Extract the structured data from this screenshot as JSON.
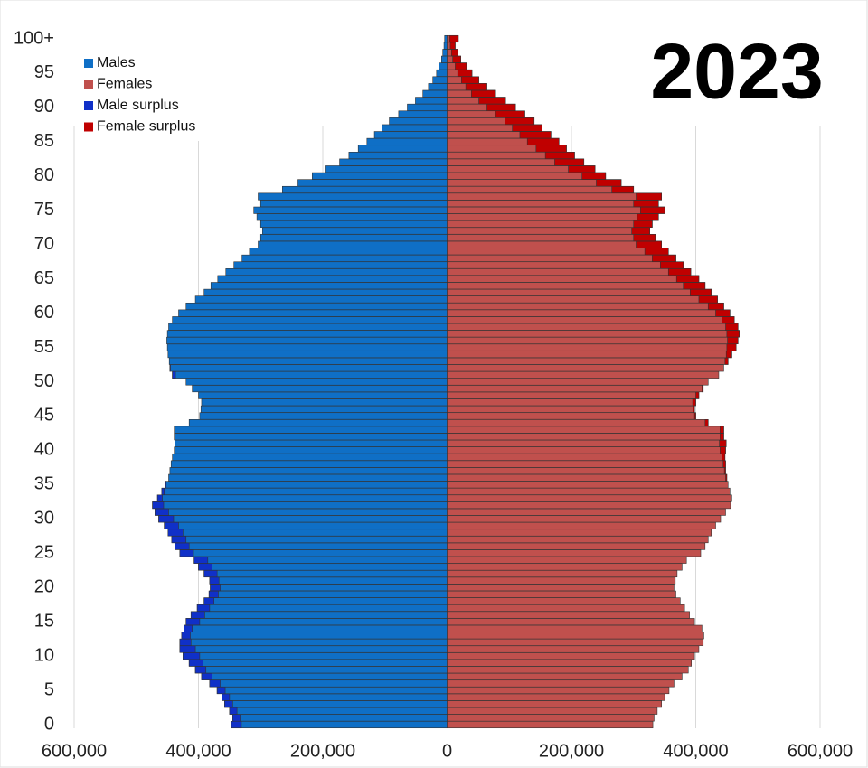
{
  "chart_data": {
    "type": "pyramid",
    "annotation": "2023",
    "categories": [
      "0",
      null,
      null,
      null,
      null,
      "5",
      null,
      null,
      null,
      null,
      "10",
      null,
      null,
      null,
      null,
      "15",
      null,
      null,
      null,
      null,
      "20",
      null,
      null,
      null,
      null,
      "25",
      null,
      null,
      null,
      null,
      "30",
      null,
      null,
      null,
      null,
      "35",
      null,
      null,
      null,
      null,
      "40",
      null,
      null,
      null,
      null,
      "45",
      null,
      null,
      null,
      null,
      "50",
      null,
      null,
      null,
      null,
      "55",
      null,
      null,
      null,
      null,
      "60",
      null,
      null,
      null,
      null,
      "65",
      null,
      null,
      null,
      null,
      "70",
      null,
      null,
      null,
      null,
      "75",
      null,
      null,
      null,
      null,
      "80",
      null,
      null,
      null,
      null,
      "85",
      null,
      null,
      null,
      null,
      "90",
      null,
      null,
      null,
      null,
      "95",
      null,
      null,
      null,
      null,
      "100+"
    ],
    "series": [
      {
        "name": "Males",
        "color": "#0f6fc6",
        "values": [
          347000,
          345000,
          350000,
          358000,
          362000,
          370000,
          382000,
          395000,
          405000,
          415000,
          425000,
          430000,
          430000,
          427000,
          423000,
          420000,
          412000,
          402000,
          391000,
          383000,
          381000,
          382000,
          391000,
          400000,
          407000,
          430000,
          438000,
          443000,
          449000,
          455000,
          464000,
          470000,
          474000,
          466000,
          459000,
          454000,
          448000,
          446000,
          444000,
          442000,
          439000,
          438000,
          439000,
          439000,
          415000,
          398000,
          396000,
          395000,
          400000,
          410000,
          420000,
          442000,
          446000,
          447000,
          449000,
          450000,
          451000,
          450000,
          448000,
          442000,
          432000,
          420000,
          405000,
          391000,
          380000,
          369000,
          356000,
          343000,
          330000,
          318000,
          304000,
          300000,
          297000,
          300000,
          306000,
          311000,
          300000,
          304000,
          265000,
          240000,
          217000,
          195000,
          173000,
          158000,
          143000,
          129000,
          117000,
          105000,
          93000,
          78000,
          64000,
          51000,
          39000,
          30000,
          23000,
          17000,
          13000,
          9000,
          7000,
          5000,
          4000
        ]
      },
      {
        "name": "Females",
        "color": "#c0504d",
        "values": [
          331000,
          333000,
          338000,
          345000,
          350000,
          357000,
          365000,
          378000,
          388000,
          393000,
          398000,
          405000,
          412000,
          413000,
          410000,
          398000,
          390000,
          382000,
          375000,
          368000,
          365000,
          367000,
          370000,
          378000,
          385000,
          408000,
          415000,
          420000,
          425000,
          432000,
          440000,
          448000,
          456000,
          458000,
          455000,
          452000,
          450000,
          448000,
          448000,
          447000,
          448000,
          449000,
          445000,
          445000,
          420000,
          400000,
          398000,
          400000,
          405000,
          412000,
          420000,
          437000,
          445000,
          452000,
          458000,
          465000,
          468000,
          470000,
          468000,
          462000,
          455000,
          445000,
          435000,
          425000,
          415000,
          405000,
          392000,
          380000,
          368000,
          356000,
          345000,
          335000,
          326000,
          330000,
          340000,
          350000,
          340000,
          345000,
          300000,
          280000,
          255000,
          238000,
          220000,
          205000,
          192000,
          180000,
          167000,
          153000,
          140000,
          125000,
          110000,
          94000,
          78000,
          64000,
          51000,
          40000,
          31000,
          22000,
          17000,
          13000,
          18000
        ]
      }
    ],
    "surplus": [
      {
        "name": "Male surplus",
        "color": "#1030c8"
      },
      {
        "name": "Female surplus",
        "color": "#c00000"
      }
    ],
    "xlim": [
      -600000,
      600000
    ],
    "xticks": [
      {
        "value": -600000,
        "label": "600,000"
      },
      {
        "value": -400000,
        "label": "400,000"
      },
      {
        "value": -200000,
        "label": "200,000"
      },
      0,
      {
        "value": 200000,
        "label": "200,000"
      },
      {
        "value": 400000,
        "label": "400,000"
      },
      {
        "value": 600000,
        "label": "600,000"
      }
    ],
    "grid": true,
    "legend": "upper left"
  }
}
